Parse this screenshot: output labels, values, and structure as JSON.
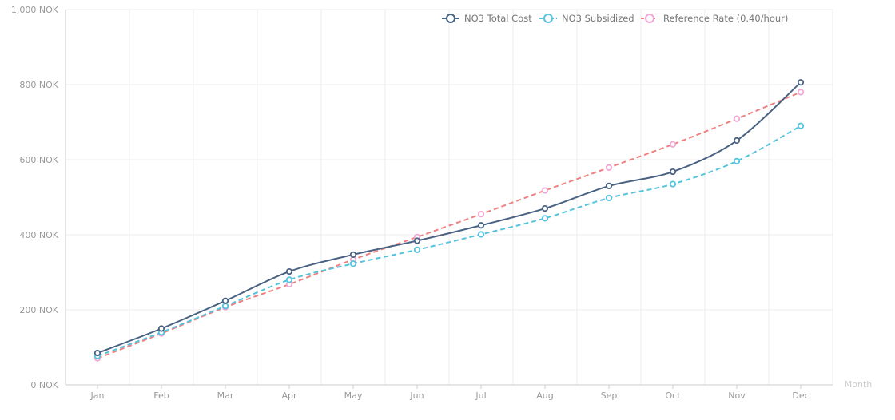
{
  "chart_data": {
    "type": "line",
    "title": "",
    "xlabel": "Month",
    "ylabel": "",
    "categories": [
      "Jan",
      "Feb",
      "Mar",
      "Apr",
      "May",
      "Jun",
      "Jul",
      "Aug",
      "Sep",
      "Oct",
      "Nov",
      "Dec"
    ],
    "ylim": [
      0,
      1000
    ],
    "yticks": [
      0,
      200,
      400,
      600,
      800,
      1000
    ],
    "ytick_labels": [
      "0 NOK",
      "200 NOK",
      "400 NOK",
      "600 NOK",
      "800 NOK",
      "1,000 NOK"
    ],
    "grid": true,
    "legend_position": "top-right",
    "series": [
      {
        "name": "NO3 Total Cost",
        "color": "#4a6282",
        "style": "solid",
        "values": [
          85,
          150,
          224,
          302,
          347,
          384,
          425,
          470,
          530,
          568,
          651,
          806
        ]
      },
      {
        "name": "NO3 Subsidized",
        "color": "#56c3dd",
        "style": "dashed",
        "values": [
          77,
          140,
          210,
          280,
          323,
          360,
          401,
          444,
          498,
          535,
          596,
          690
        ]
      },
      {
        "name": "Reference Rate (0.40/hour)",
        "color": "#f08080",
        "marker_color": "#efa7d3",
        "style": "dashed",
        "values": [
          71,
          137,
          207,
          268,
          334,
          394,
          455,
          518,
          579,
          641,
          709,
          780
        ]
      }
    ]
  }
}
